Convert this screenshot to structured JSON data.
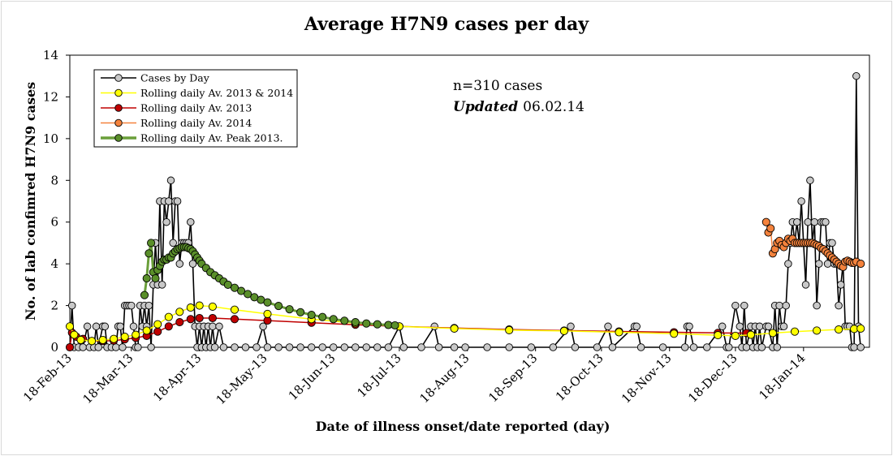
{
  "chart_data": {
    "type": "line",
    "title": "Average H7N9 cases per day",
    "xlabel": "Date of illness onset/date reported (day)",
    "ylabel": "No. of lab confimred H7N9 cases",
    "ylim": [
      0,
      14
    ],
    "yticks": [
      0,
      2,
      4,
      6,
      8,
      10,
      12,
      14
    ],
    "x_range_days": [
      0,
      358
    ],
    "x_tick_labels": [
      "18-Feb-13",
      "18-Mar-13",
      "18-Apr-13",
      "18-May-13",
      "18-Jun-13",
      "18-Jul-13",
      "18-Aug-13",
      "18-Sep-13",
      "18-Oct-13",
      "18-Nov-13",
      "18-Dec-13",
      "18-Jan-14"
    ],
    "x_tick_days": [
      0,
      28,
      59,
      89,
      120,
      150,
      181,
      212,
      242,
      273,
      303,
      334
    ],
    "x_unit": "days since 18-Feb-13",
    "annotations": {
      "n_cases": "n=310 cases",
      "updated_label": "Updated",
      "updated_date": "06.02.14"
    },
    "legend_position": "top-left",
    "series": [
      {
        "name": "Cases by Day",
        "color": "#000000",
        "marker": "#c8c8c8",
        "points": [
          [
            0,
            0
          ],
          [
            1,
            2
          ],
          [
            2,
            0
          ],
          [
            4,
            0
          ],
          [
            6,
            0
          ],
          [
            8,
            1
          ],
          [
            9,
            0
          ],
          [
            11,
            0
          ],
          [
            12,
            1
          ],
          [
            13,
            0
          ],
          [
            15,
            1
          ],
          [
            16,
            1
          ],
          [
            17,
            0
          ],
          [
            19,
            0
          ],
          [
            21,
            0
          ],
          [
            22,
            1
          ],
          [
            23,
            1
          ],
          [
            24,
            0
          ],
          [
            25,
            2
          ],
          [
            26,
            2
          ],
          [
            27,
            2
          ],
          [
            28,
            2
          ],
          [
            29,
            1
          ],
          [
            30,
            0
          ],
          [
            31,
            0
          ],
          [
            32,
            2
          ],
          [
            33,
            1
          ],
          [
            34,
            2
          ],
          [
            35,
            1
          ],
          [
            36,
            2
          ],
          [
            37,
            0
          ],
          [
            38,
            3
          ],
          [
            39,
            5
          ],
          [
            40,
            3
          ],
          [
            41,
            7
          ],
          [
            42,
            3
          ],
          [
            43,
            7
          ],
          [
            44,
            6
          ],
          [
            45,
            7
          ],
          [
            46,
            8
          ],
          [
            47,
            5
          ],
          [
            48,
            7
          ],
          [
            49,
            7
          ],
          [
            50,
            4
          ],
          [
            51,
            5
          ],
          [
            52,
            5
          ],
          [
            53,
            5
          ],
          [
            54,
            5
          ],
          [
            55,
            6
          ],
          [
            56,
            4
          ],
          [
            57,
            1
          ],
          [
            58,
            0
          ],
          [
            59,
            1
          ],
          [
            60,
            0
          ],
          [
            61,
            1
          ],
          [
            62,
            0
          ],
          [
            63,
            1
          ],
          [
            64,
            0
          ],
          [
            65,
            1
          ],
          [
            66,
            0
          ],
          [
            68,
            1
          ],
          [
            70,
            0
          ],
          [
            75,
            0
          ],
          [
            80,
            0
          ],
          [
            85,
            0
          ],
          [
            88,
            1
          ],
          [
            90,
            0
          ],
          [
            95,
            0
          ],
          [
            100,
            0
          ],
          [
            105,
            0
          ],
          [
            110,
            0
          ],
          [
            115,
            0
          ],
          [
            120,
            0
          ],
          [
            125,
            0
          ],
          [
            130,
            0
          ],
          [
            135,
            0
          ],
          [
            140,
            0
          ],
          [
            145,
            0
          ],
          [
            150,
            1
          ],
          [
            152,
            0
          ],
          [
            160,
            0
          ],
          [
            166,
            1
          ],
          [
            168,
            0
          ],
          [
            175,
            0
          ],
          [
            180,
            0
          ],
          [
            190,
            0
          ],
          [
            200,
            0
          ],
          [
            210,
            0
          ],
          [
            220,
            0
          ],
          [
            228,
            1
          ],
          [
            230,
            0
          ],
          [
            240,
            0
          ],
          [
            245,
            1
          ],
          [
            247,
            0
          ],
          [
            257,
            1
          ],
          [
            258,
            1
          ],
          [
            260,
            0
          ],
          [
            270,
            0
          ],
          [
            280,
            0
          ],
          [
            281,
            1
          ],
          [
            282,
            1
          ],
          [
            284,
            0
          ],
          [
            290,
            0
          ],
          [
            297,
            1
          ],
          [
            299,
            0
          ],
          [
            300,
            0
          ],
          [
            303,
            2
          ],
          [
            305,
            1
          ],
          [
            306,
            0
          ],
          [
            307,
            2
          ],
          [
            308,
            0
          ],
          [
            310,
            1
          ],
          [
            311,
            0
          ],
          [
            312,
            1
          ],
          [
            313,
            0
          ],
          [
            314,
            1
          ],
          [
            315,
            0
          ],
          [
            317,
            1
          ],
          [
            318,
            1
          ],
          [
            320,
            0
          ],
          [
            321,
            2
          ],
          [
            322,
            0
          ],
          [
            323,
            2
          ],
          [
            324,
            1
          ],
          [
            325,
            1
          ],
          [
            326,
            2
          ],
          [
            327,
            4
          ],
          [
            328,
            5
          ],
          [
            329,
            6
          ],
          [
            330,
            5
          ],
          [
            331,
            6
          ],
          [
            332,
            5
          ],
          [
            333,
            7
          ],
          [
            334,
            5
          ],
          [
            335,
            3
          ],
          [
            336,
            6
          ],
          [
            337,
            8
          ],
          [
            338,
            5
          ],
          [
            339,
            6
          ],
          [
            340,
            2
          ],
          [
            341,
            4
          ],
          [
            342,
            6
          ],
          [
            343,
            6
          ],
          [
            344,
            6
          ],
          [
            345,
            4
          ],
          [
            346,
            5
          ],
          [
            347,
            5
          ],
          [
            348,
            4
          ],
          [
            349,
            4
          ],
          [
            350,
            2
          ],
          [
            351,
            3
          ],
          [
            352,
            4
          ],
          [
            353,
            1
          ],
          [
            354,
            1
          ],
          [
            355,
            1
          ],
          [
            356,
            0
          ],
          [
            357,
            0
          ],
          [
            358,
            13
          ],
          [
            359,
            1
          ],
          [
            360,
            0
          ]
        ]
      },
      {
        "name": "Rolling daily Av. 2013 & 2014",
        "color": "#ffff00",
        "marker": "#ffff00",
        "points": [
          [
            0,
            1
          ],
          [
            2,
            0.6
          ],
          [
            5,
            0.35
          ],
          [
            10,
            0.3
          ],
          [
            15,
            0.35
          ],
          [
            20,
            0.4
          ],
          [
            25,
            0.5
          ],
          [
            30,
            0.6
          ],
          [
            35,
            0.8
          ],
          [
            40,
            1.1
          ],
          [
            45,
            1.45
          ],
          [
            50,
            1.7
          ],
          [
            55,
            1.9
          ],
          [
            59,
            2.0
          ],
          [
            65,
            1.95
          ],
          [
            75,
            1.8
          ],
          [
            90,
            1.6
          ],
          [
            110,
            1.35
          ],
          [
            130,
            1.15
          ],
          [
            150,
            1.0
          ],
          [
            175,
            0.9
          ],
          [
            200,
            0.82
          ],
          [
            225,
            0.78
          ],
          [
            250,
            0.72
          ],
          [
            275,
            0.65
          ],
          [
            295,
            0.58
          ],
          [
            303,
            0.55
          ],
          [
            310,
            0.6
          ],
          [
            320,
            0.68
          ],
          [
            330,
            0.75
          ],
          [
            340,
            0.8
          ],
          [
            350,
            0.85
          ],
          [
            357,
            0.88
          ],
          [
            360,
            0.9
          ]
        ]
      },
      {
        "name": "Rolling daily Av. 2013",
        "color": "#c00000",
        "marker": "#c00000",
        "points": [
          [
            0,
            0
          ],
          [
            1,
            0.7
          ],
          [
            3,
            0.5
          ],
          [
            6,
            0.4
          ],
          [
            10,
            0.3
          ],
          [
            15,
            0.3
          ],
          [
            20,
            0.32
          ],
          [
            25,
            0.38
          ],
          [
            30,
            0.45
          ],
          [
            35,
            0.55
          ],
          [
            40,
            0.75
          ],
          [
            45,
            1.0
          ],
          [
            50,
            1.2
          ],
          [
            55,
            1.35
          ],
          [
            59,
            1.4
          ],
          [
            65,
            1.4
          ],
          [
            75,
            1.35
          ],
          [
            90,
            1.28
          ],
          [
            110,
            1.18
          ],
          [
            130,
            1.08
          ],
          [
            150,
            1.0
          ],
          [
            175,
            0.92
          ],
          [
            200,
            0.85
          ],
          [
            225,
            0.8
          ],
          [
            250,
            0.76
          ],
          [
            275,
            0.72
          ],
          [
            295,
            0.69
          ],
          [
            308,
            0.68
          ]
        ]
      },
      {
        "name": "Rolling daily Av. 2014",
        "color": "#f4823c",
        "marker": "#f4823c",
        "points": [
          [
            317,
            6.0
          ],
          [
            318,
            5.5
          ],
          [
            319,
            5.7
          ],
          [
            320,
            4.5
          ],
          [
            321,
            4.7
          ],
          [
            322,
            5.0
          ],
          [
            323,
            5.1
          ],
          [
            324,
            4.9
          ],
          [
            325,
            4.8
          ],
          [
            326,
            5.0
          ],
          [
            327,
            5.2
          ],
          [
            328,
            5.1
          ],
          [
            329,
            5.2
          ],
          [
            330,
            5.0
          ],
          [
            331,
            5.0
          ],
          [
            332,
            5.0
          ],
          [
            333,
            5.0
          ],
          [
            334,
            5.0
          ],
          [
            335,
            5.0
          ],
          [
            336,
            5.0
          ],
          [
            337,
            5.0
          ],
          [
            338,
            5.0
          ],
          [
            339,
            4.95
          ],
          [
            340,
            4.9
          ],
          [
            341,
            4.85
          ],
          [
            342,
            4.75
          ],
          [
            343,
            4.7
          ],
          [
            344,
            4.6
          ],
          [
            345,
            4.5
          ],
          [
            346,
            4.4
          ],
          [
            347,
            4.3
          ],
          [
            348,
            4.2
          ],
          [
            349,
            4.1
          ],
          [
            350,
            4.0
          ],
          [
            351,
            3.9
          ],
          [
            352,
            3.85
          ],
          [
            353,
            4.1
          ],
          [
            354,
            4.15
          ],
          [
            355,
            4.1
          ],
          [
            356,
            4.05
          ],
          [
            357,
            4.05
          ],
          [
            358,
            4.1
          ],
          [
            360,
            4.0
          ]
        ]
      },
      {
        "name": "Rolling daily Av. Peak 2013.",
        "color": "#6a9f3a",
        "marker": "#5a8f2a",
        "points": [
          [
            34,
            2.5
          ],
          [
            35,
            3.3
          ],
          [
            36,
            4.5
          ],
          [
            37,
            5.0
          ],
          [
            38,
            3.6
          ],
          [
            39,
            3.3
          ],
          [
            40,
            3.7
          ],
          [
            41,
            3.9
          ],
          [
            42,
            4.1
          ],
          [
            43,
            4.2
          ],
          [
            44,
            4.2
          ],
          [
            45,
            4.3
          ],
          [
            46,
            4.3
          ],
          [
            47,
            4.5
          ],
          [
            48,
            4.6
          ],
          [
            49,
            4.7
          ],
          [
            50,
            4.75
          ],
          [
            51,
            4.8
          ],
          [
            52,
            4.8
          ],
          [
            53,
            4.8
          ],
          [
            54,
            4.75
          ],
          [
            55,
            4.7
          ],
          [
            56,
            4.6
          ],
          [
            57,
            4.45
          ],
          [
            58,
            4.3
          ],
          [
            59,
            4.15
          ],
          [
            60,
            4.0
          ],
          [
            62,
            3.8
          ],
          [
            64,
            3.6
          ],
          [
            66,
            3.45
          ],
          [
            68,
            3.3
          ],
          [
            70,
            3.15
          ],
          [
            72,
            3.0
          ],
          [
            75,
            2.85
          ],
          [
            78,
            2.7
          ],
          [
            81,
            2.55
          ],
          [
            84,
            2.4
          ],
          [
            87,
            2.27
          ],
          [
            90,
            2.15
          ],
          [
            95,
            1.98
          ],
          [
            100,
            1.82
          ],
          [
            105,
            1.68
          ],
          [
            110,
            1.55
          ],
          [
            115,
            1.45
          ],
          [
            120,
            1.35
          ],
          [
            125,
            1.27
          ],
          [
            130,
            1.2
          ],
          [
            135,
            1.14
          ],
          [
            140,
            1.1
          ],
          [
            145,
            1.07
          ],
          [
            148,
            1.05
          ]
        ]
      }
    ]
  }
}
